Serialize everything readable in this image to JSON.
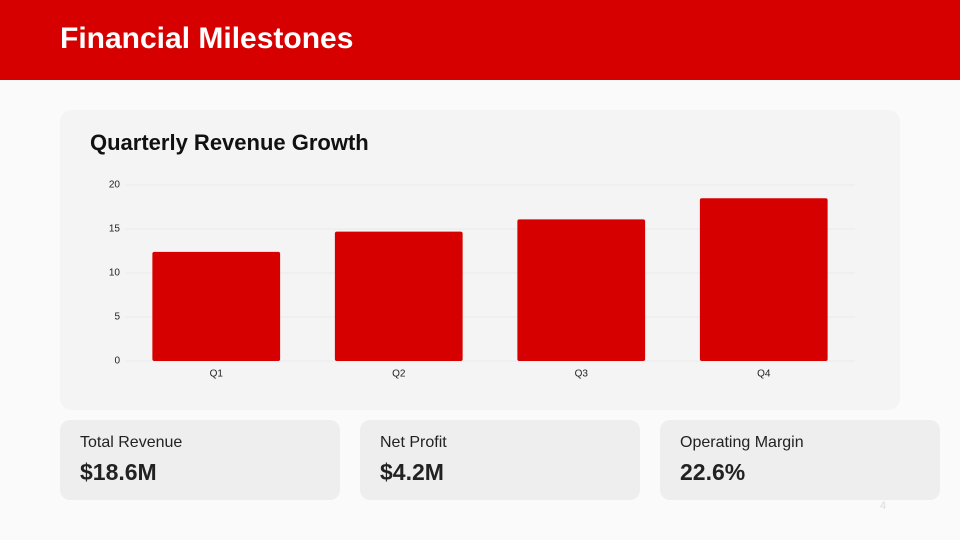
{
  "header": {
    "title": "Financial Milestones"
  },
  "chart_data": {
    "type": "bar",
    "title": "Quarterly Revenue Growth",
    "categories": [
      "Q1",
      "Q2",
      "Q3",
      "Q4"
    ],
    "values": [
      12.4,
      14.7,
      16.1,
      18.5
    ],
    "color": "#d60000",
    "ylim": [
      0,
      20
    ],
    "yticks": [
      0,
      5,
      10,
      15,
      20
    ],
    "grid": true
  },
  "kpis": [
    {
      "label": "Total Revenue",
      "value": "$18.6M"
    },
    {
      "label": "Net Profit",
      "value": "$4.2M"
    },
    {
      "label": "Operating Margin",
      "value": "22.6%"
    }
  ],
  "page_number": "4"
}
